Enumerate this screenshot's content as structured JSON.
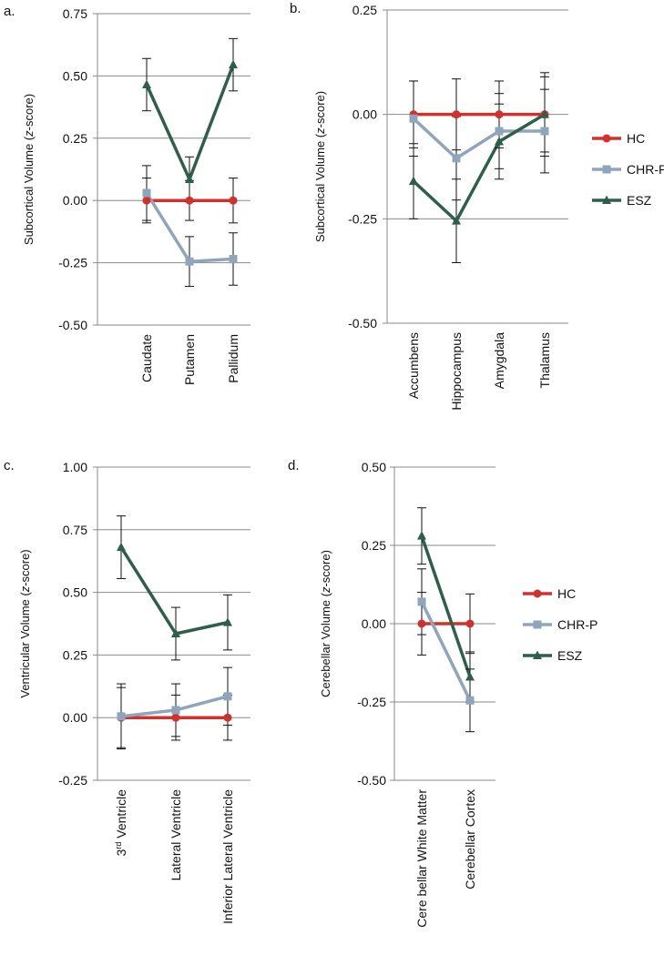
{
  "colors": {
    "HC": "#d0312d",
    "CHR-P": "#8fa5bb",
    "ESZ": "#2d5f4a",
    "grid": "#8a8a8a",
    "errorbar": "#111111"
  },
  "legend": [
    "HC",
    "CHR-P",
    "ESZ"
  ],
  "chart_data": [
    {
      "panel": "a.",
      "type": "line",
      "ylabel": {
        "pre": "Subcortical Volume (",
        "italic": "z",
        "post": "-score)"
      },
      "ylim": [
        -0.5,
        0.75
      ],
      "yticks": [
        "0.75",
        "0.50",
        "0.25",
        "0.00",
        "-0.25",
        "-0.50"
      ],
      "categories": [
        {
          "base": "Caudate",
          "sup": "",
          "rest": ""
        },
        {
          "base": "Putamen",
          "sup": "",
          "rest": ""
        },
        {
          "base": "Pallidum",
          "sup": "",
          "rest": ""
        }
      ],
      "legend_shown": false,
      "series": [
        {
          "name": "HC",
          "marker": "circle",
          "values": [
            0.0,
            0.0,
            0.0
          ],
          "err_up": [
            0.09,
            0.08,
            0.09
          ],
          "err_dn": [
            0.09,
            0.08,
            0.09
          ]
        },
        {
          "name": "CHR-P",
          "marker": "square",
          "values": [
            0.03,
            -0.245,
            -0.235
          ],
          "err_up": [
            0.11,
            0.1,
            0.105
          ],
          "err_dn": [
            0.11,
            0.1,
            0.105
          ]
        },
        {
          "name": "ESZ",
          "marker": "triangle",
          "values": [
            0.465,
            0.085,
            0.545
          ],
          "err_up": [
            0.105,
            0.09,
            0.105
          ],
          "err_dn": [
            0.105,
            0.09,
            0.105
          ]
        }
      ]
    },
    {
      "panel": "b.",
      "type": "line",
      "ylabel": {
        "pre": "Subcortical Volume (",
        "italic": "z",
        "post": "-score)"
      },
      "ylim": [
        -0.5,
        0.25
      ],
      "yticks": [
        "0.25",
        "0.00",
        "-0.25",
        "-0.50"
      ],
      "categories": [
        {
          "base": "Accumbens",
          "sup": "",
          "rest": ""
        },
        {
          "base": "Hippocampus",
          "sup": "",
          "rest": ""
        },
        {
          "base": "Amygdala",
          "sup": "",
          "rest": ""
        },
        {
          "base": "Thalamus",
          "sup": "",
          "rest": ""
        }
      ],
      "legend_shown": true,
      "series": [
        {
          "name": "HC",
          "marker": "circle",
          "values": [
            0.0,
            0.0,
            0.0,
            0.0
          ],
          "err_up": [
            0.08,
            0.085,
            0.08,
            0.1
          ],
          "err_dn": [
            0.08,
            0.085,
            0.08,
            0.1
          ]
        },
        {
          "name": "CHR-P",
          "marker": "square",
          "values": [
            -0.01,
            -0.105,
            -0.04,
            -0.04
          ],
          "err_up": [
            0.09,
            0.1,
            0.09,
            0.1
          ],
          "err_dn": [
            0.09,
            0.1,
            0.09,
            0.1
          ]
        },
        {
          "name": "ESZ",
          "marker": "triangle",
          "values": [
            -0.16,
            -0.255,
            -0.065,
            0.0
          ],
          "err_up": [
            0.09,
            0.1,
            0.09,
            0.09
          ],
          "err_dn": [
            0.09,
            0.1,
            0.09,
            0.09
          ]
        }
      ]
    },
    {
      "panel": "c.",
      "type": "line",
      "ylabel": {
        "pre": "Ventricular Volume (",
        "italic": "z",
        "post": "-score)"
      },
      "ylim": [
        -0.25,
        1.0
      ],
      "yticks": [
        "1.00",
        "0.75",
        "0.50",
        "0.25",
        "0.00",
        "-0.25"
      ],
      "categories": [
        {
          "base": "3",
          "sup": "rd",
          "rest": " Ventricle"
        },
        {
          "base": "Lateral Ventricle",
          "sup": "",
          "rest": ""
        },
        {
          "base": "Inferior Lateral Ventricle",
          "sup": "",
          "rest": ""
        }
      ],
      "legend_shown": false,
      "series": [
        {
          "name": "HC",
          "marker": "circle",
          "values": [
            0.0,
            0.0,
            0.0
          ],
          "err_up": [
            0.12,
            0.09,
            0.09
          ],
          "err_dn": [
            0.12,
            0.09,
            0.09
          ]
        },
        {
          "name": "CHR-P",
          "marker": "square",
          "values": [
            0.005,
            0.03,
            0.085
          ],
          "err_up": [
            0.13,
            0.105,
            0.115
          ],
          "err_dn": [
            0.13,
            0.105,
            0.115
          ]
        },
        {
          "name": "ESZ",
          "marker": "triangle",
          "values": [
            0.68,
            0.335,
            0.38
          ],
          "err_up": [
            0.125,
            0.105,
            0.11
          ],
          "err_dn": [
            0.125,
            0.105,
            0.11
          ]
        }
      ]
    },
    {
      "panel": "d.",
      "type": "line",
      "ylabel": {
        "pre": "Cerebellar Volume (",
        "italic": "z",
        "post": "-score)"
      },
      "ylim": [
        -0.5,
        0.5
      ],
      "yticks": [
        "0.50",
        "0.25",
        "0.00",
        "-0.25",
        "-0.50"
      ],
      "categories": [
        {
          "base": "Cere bellar White Matter",
          "sup": "",
          "rest": ""
        },
        {
          "base": "Cerebellar Cortex",
          "sup": "",
          "rest": ""
        }
      ],
      "legend_shown": true,
      "series": [
        {
          "name": "HC",
          "marker": "circle",
          "values": [
            0.0,
            0.0
          ],
          "err_up": [
            0.1,
            0.095
          ],
          "err_dn": [
            0.1,
            0.095
          ]
        },
        {
          "name": "CHR-P",
          "marker": "square",
          "values": [
            0.07,
            -0.245
          ],
          "err_up": [
            0.105,
            0.1
          ],
          "err_dn": [
            0.105,
            0.1
          ]
        },
        {
          "name": "ESZ",
          "marker": "triangle",
          "values": [
            0.28,
            -0.17
          ],
          "err_up": [
            0.09,
            0.08
          ],
          "err_dn": [
            0.09,
            0.08
          ]
        }
      ]
    }
  ]
}
